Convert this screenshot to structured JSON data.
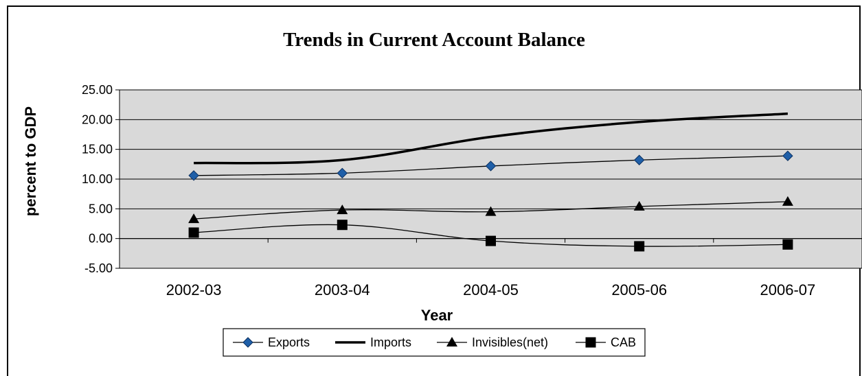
{
  "chart_data": {
    "type": "line",
    "title": "Trends in Current Account Balance",
    "xlabel": "Year",
    "ylabel": "percent to GDP",
    "categories": [
      "2002-03",
      "2003-04",
      "2004-05",
      "2005-06",
      "2006-07"
    ],
    "ylim": [
      -5,
      25
    ],
    "yticks": [
      "25.00",
      "20.00",
      "15.00",
      "10.00",
      "5.00",
      "0.00",
      "-5.00"
    ],
    "grid": true,
    "legend_position": "bottom",
    "series": [
      {
        "name": "Exports",
        "values": [
          10.6,
          11.0,
          12.2,
          13.2,
          13.9
        ],
        "marker": "diamond",
        "color": "#1f5fa8"
      },
      {
        "name": "Imports",
        "values": [
          12.7,
          13.2,
          17.1,
          19.6,
          21.0
        ],
        "marker": "none",
        "color": "#000000"
      },
      {
        "name": "Invisibles(net)",
        "values": [
          3.3,
          4.8,
          4.5,
          5.4,
          6.2
        ],
        "marker": "triangle",
        "color": "#000000"
      },
      {
        "name": "CAB",
        "values": [
          1.0,
          2.3,
          -0.4,
          -1.3,
          -1.0
        ],
        "marker": "square",
        "color": "#000000"
      }
    ],
    "plot_background": "#d9d9d9"
  }
}
